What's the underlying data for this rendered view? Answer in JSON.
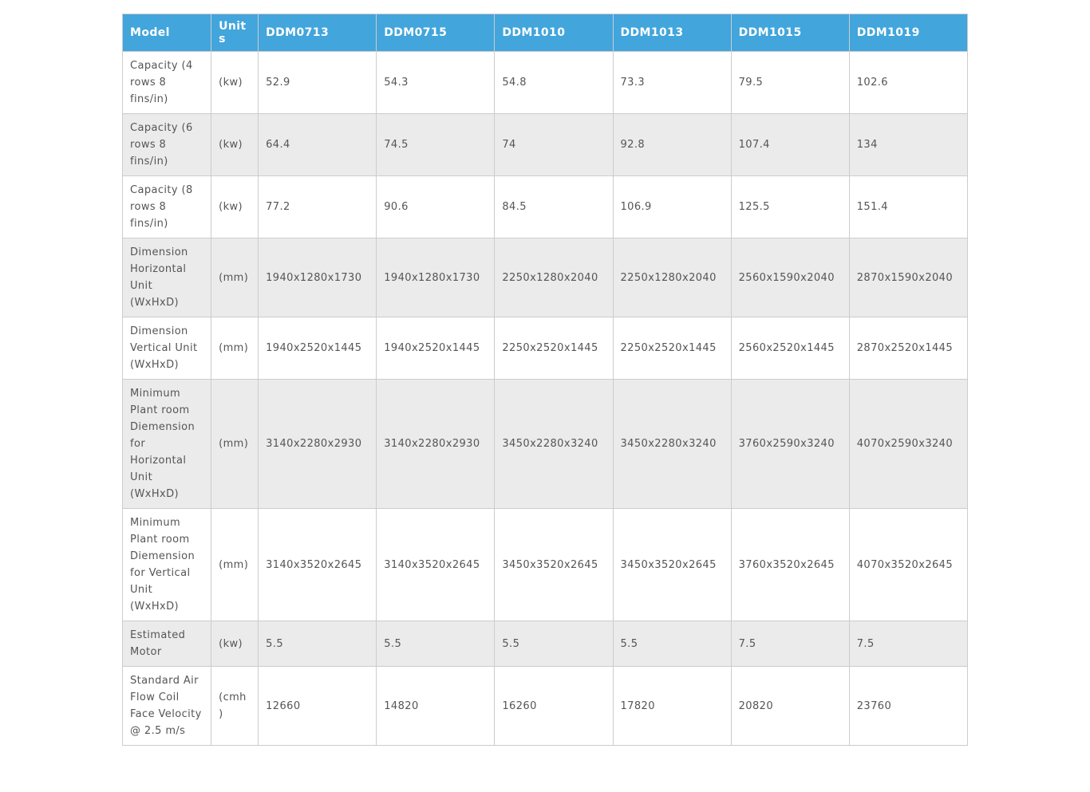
{
  "colors": {
    "header_bg": "#42a5dc",
    "header_text": "#ffffff",
    "row_alt_bg": "#ebebeb",
    "border": "#cccccc",
    "text": "#555557"
  },
  "table": {
    "headers": [
      "Model",
      "Units",
      "DDM0713",
      "DDM0715",
      "DDM1010",
      "DDM1013",
      "DDM1015",
      "DDM1019"
    ],
    "rows": [
      {
        "model": "Capacity (4 rows 8 fins/in)",
        "units": "(kw)",
        "values": [
          "52.9",
          "54.3",
          "54.8",
          "73.3",
          "79.5",
          "102.6"
        ]
      },
      {
        "model": "Capacity (6 rows 8 fins/in)",
        "units": "(kw)",
        "values": [
          "64.4",
          "74.5",
          "74",
          "92.8",
          "107.4",
          "134"
        ]
      },
      {
        "model": "Capacity (8 rows 8 fins/in)",
        "units": "(kw)",
        "values": [
          "77.2",
          "90.6",
          "84.5",
          "106.9",
          "125.5",
          "151.4"
        ]
      },
      {
        "model": "Dimension Horizontal Unit (WxHxD)",
        "units": "(mm)",
        "values": [
          "1940x1280x1730",
          "1940x1280x1730",
          "2250x1280x2040",
          "2250x1280x2040",
          "2560x1590x2040",
          "2870x1590x2040"
        ]
      },
      {
        "model": "Dimension Vertical Unit (WxHxD)",
        "units": "(mm)",
        "values": [
          "1940x2520x1445",
          "1940x2520x1445",
          "2250x2520x1445",
          "2250x2520x1445",
          "2560x2520x1445",
          "2870x2520x1445"
        ]
      },
      {
        "model": "Minimum Plant room Diemension for Horizontal Unit (WxHxD)",
        "units": "(mm)",
        "values": [
          "3140x2280x2930",
          "3140x2280x2930",
          "3450x2280x3240",
          "3450x2280x3240",
          "3760x2590x3240",
          "4070x2590x3240"
        ]
      },
      {
        "model": "Minimum Plant room Diemension for Vertical Unit (WxHxD)",
        "units": "(mm)",
        "values": [
          "3140x3520x2645",
          "3140x3520x2645",
          "3450x3520x2645",
          "3450x3520x2645",
          "3760x3520x2645",
          "4070x3520x2645"
        ]
      },
      {
        "model": "Estimated Motor",
        "units": "(kw)",
        "values": [
          "5.5",
          "5.5",
          "5.5",
          "5.5",
          "7.5",
          "7.5"
        ]
      },
      {
        "model": "Standard Air Flow Coil Face Velocity @ 2.5 m/s",
        "units": "(cmh)",
        "values": [
          "12660",
          "14820",
          "16260",
          "17820",
          "20820",
          "23760"
        ]
      }
    ]
  }
}
